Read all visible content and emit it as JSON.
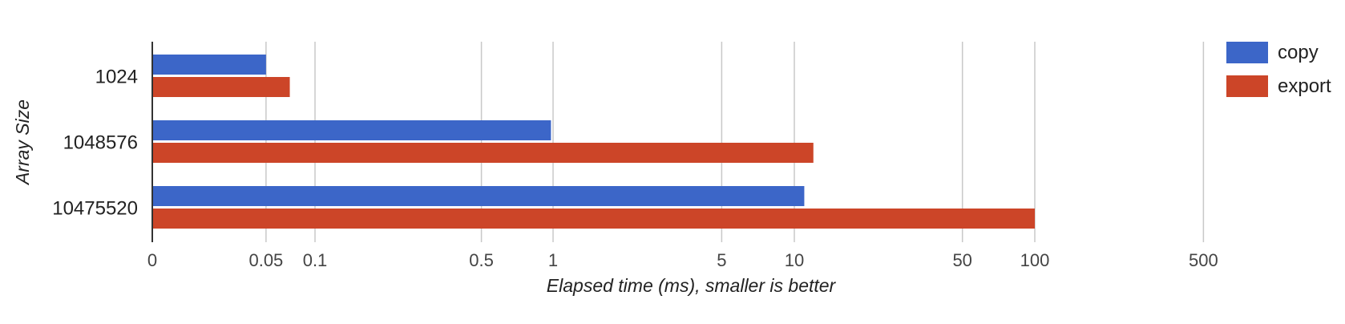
{
  "chart_data": {
    "type": "bar",
    "orientation": "horizontal",
    "xscale": "log",
    "xlabel": "Elapsed time (ms), smaller is better",
    "ylabel": "Array Size",
    "categories": [
      "1024",
      "1048576",
      "10475520"
    ],
    "series": [
      {
        "name": "copy",
        "color": "#3c66c8",
        "values": [
          0.05,
          0.98,
          11
        ]
      },
      {
        "name": "export",
        "color": "#cc4528",
        "values": [
          0.07,
          12,
          100
        ]
      }
    ],
    "xticks": [
      {
        "value": 0,
        "label": "0"
      },
      {
        "value": 0.05,
        "label": "0.05"
      },
      {
        "value": 0.1,
        "label": "0.1"
      },
      {
        "value": 0.5,
        "label": "0.5"
      },
      {
        "value": 1,
        "label": "1"
      },
      {
        "value": 5,
        "label": "5"
      },
      {
        "value": 10,
        "label": "10"
      },
      {
        "value": 50,
        "label": "50"
      },
      {
        "value": 100,
        "label": "100"
      },
      {
        "value": 500,
        "label": "500"
      }
    ],
    "xlim": [
      0,
      1000
    ],
    "grid": true,
    "legend": "top-right"
  }
}
